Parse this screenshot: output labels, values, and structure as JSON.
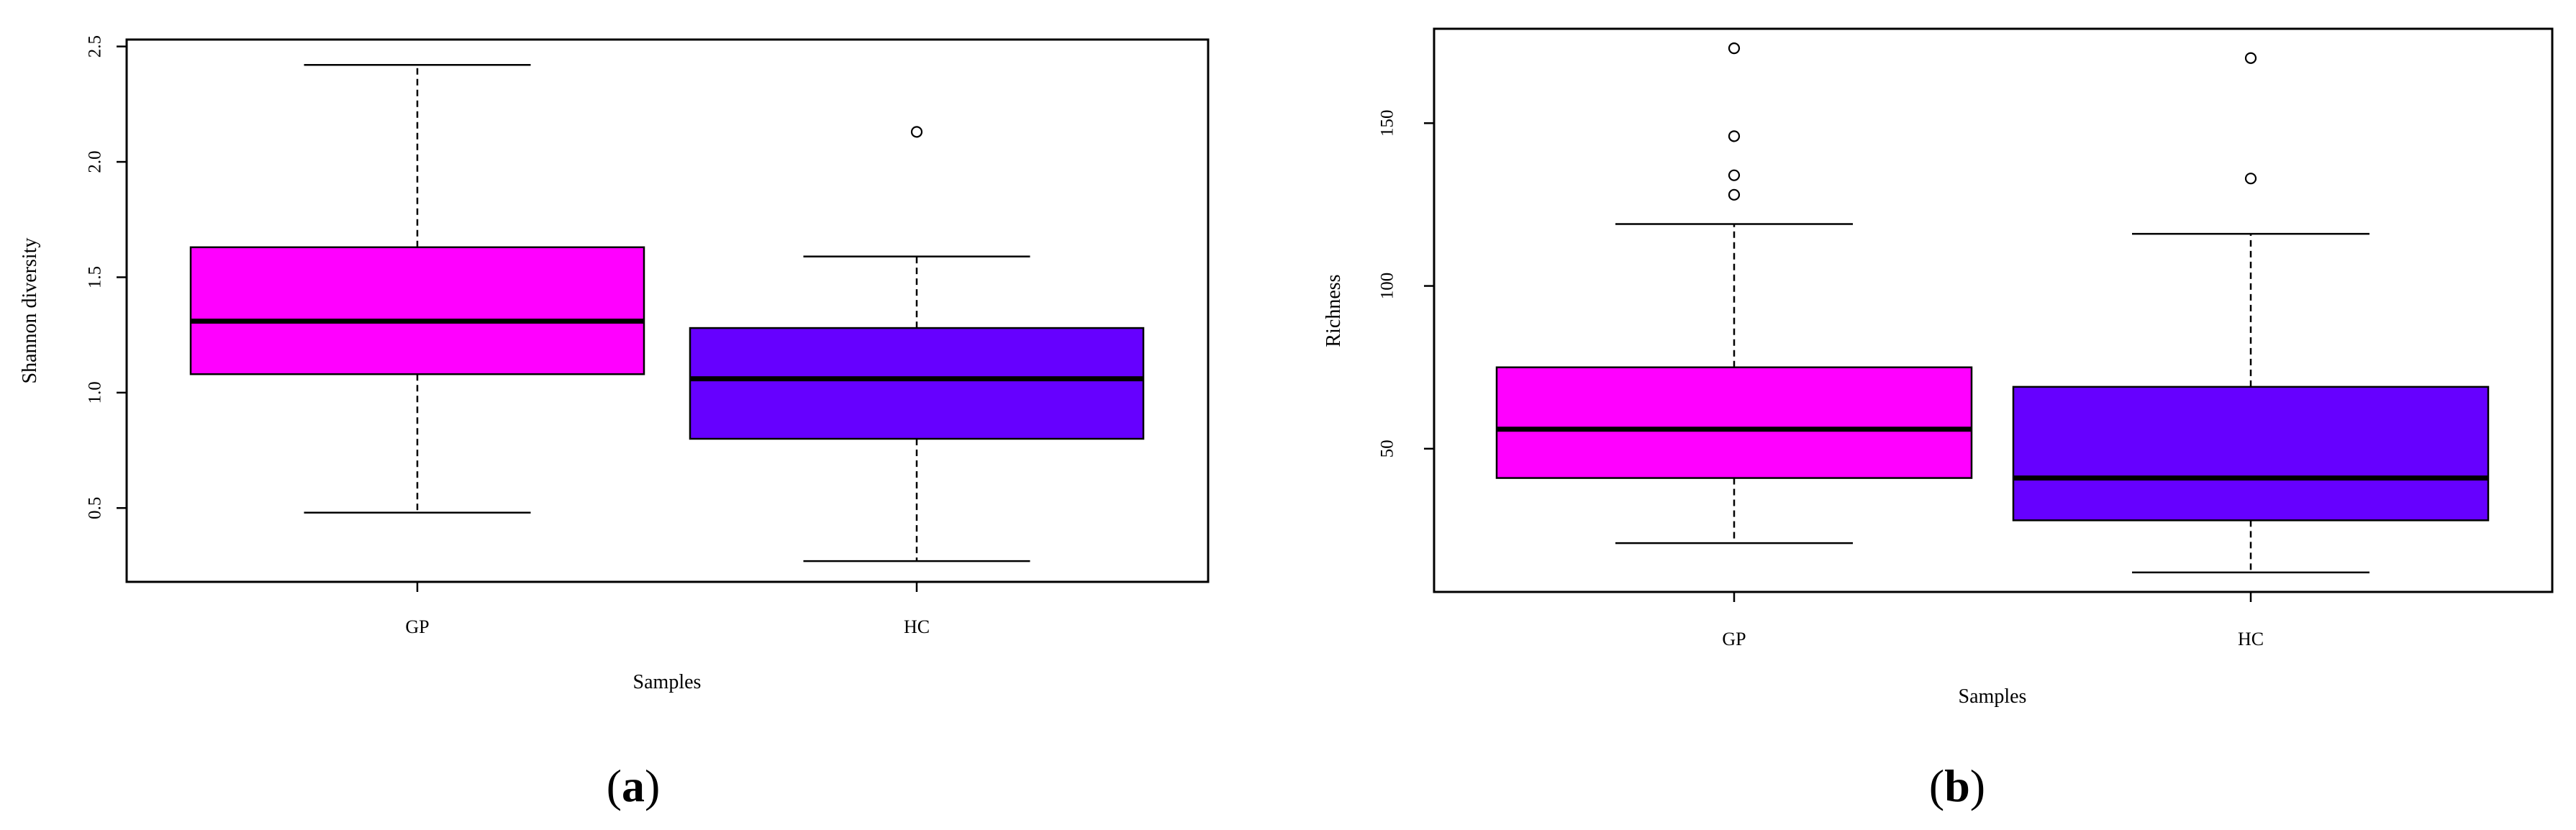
{
  "chart_data": [
    {
      "type": "box",
      "panel_label": "(a)",
      "xlabel": "Samples",
      "ylabel": "Shannon diversity",
      "ylim": [
        0.18,
        2.53
      ],
      "yticks": [
        0.5,
        1.0,
        1.5,
        2.0,
        2.5
      ],
      "ytick_labels": [
        "0.5",
        "1.0",
        "1.5",
        "2.0",
        "2.5"
      ],
      "categories": [
        "GP",
        "HC"
      ],
      "boxes": [
        {
          "label": "GP",
          "color": "#ff00ff",
          "whisker_low": 0.48,
          "q1": 1.08,
          "median": 1.31,
          "q3": 1.63,
          "whisker_high": 2.42,
          "outliers": []
        },
        {
          "label": "HC",
          "color": "#6600ff",
          "whisker_low": 0.27,
          "q1": 0.8,
          "median": 1.06,
          "q3": 1.28,
          "whisker_high": 1.59,
          "outliers": [
            2.13
          ]
        }
      ],
      "grid": false
    },
    {
      "type": "box",
      "panel_label": "(b)",
      "xlabel": "Samples",
      "ylabel": "Richness",
      "ylim": [
        6,
        179
      ],
      "yticks": [
        50,
        100,
        150
      ],
      "ytick_labels": [
        "50",
        "100",
        "150"
      ],
      "categories": [
        "GP",
        "HC"
      ],
      "boxes": [
        {
          "label": "GP",
          "color": "#ff00ff",
          "whisker_low": 21,
          "q1": 41,
          "median": 56,
          "q3": 75,
          "whisker_high": 119,
          "outliers": [
            128,
            134,
            146,
            173
          ]
        },
        {
          "label": "HC",
          "color": "#6600ff",
          "whisker_low": 12,
          "q1": 28,
          "median": 41,
          "q3": 69,
          "whisker_high": 116,
          "outliers": [
            133,
            170
          ]
        }
      ],
      "grid": false
    }
  ]
}
